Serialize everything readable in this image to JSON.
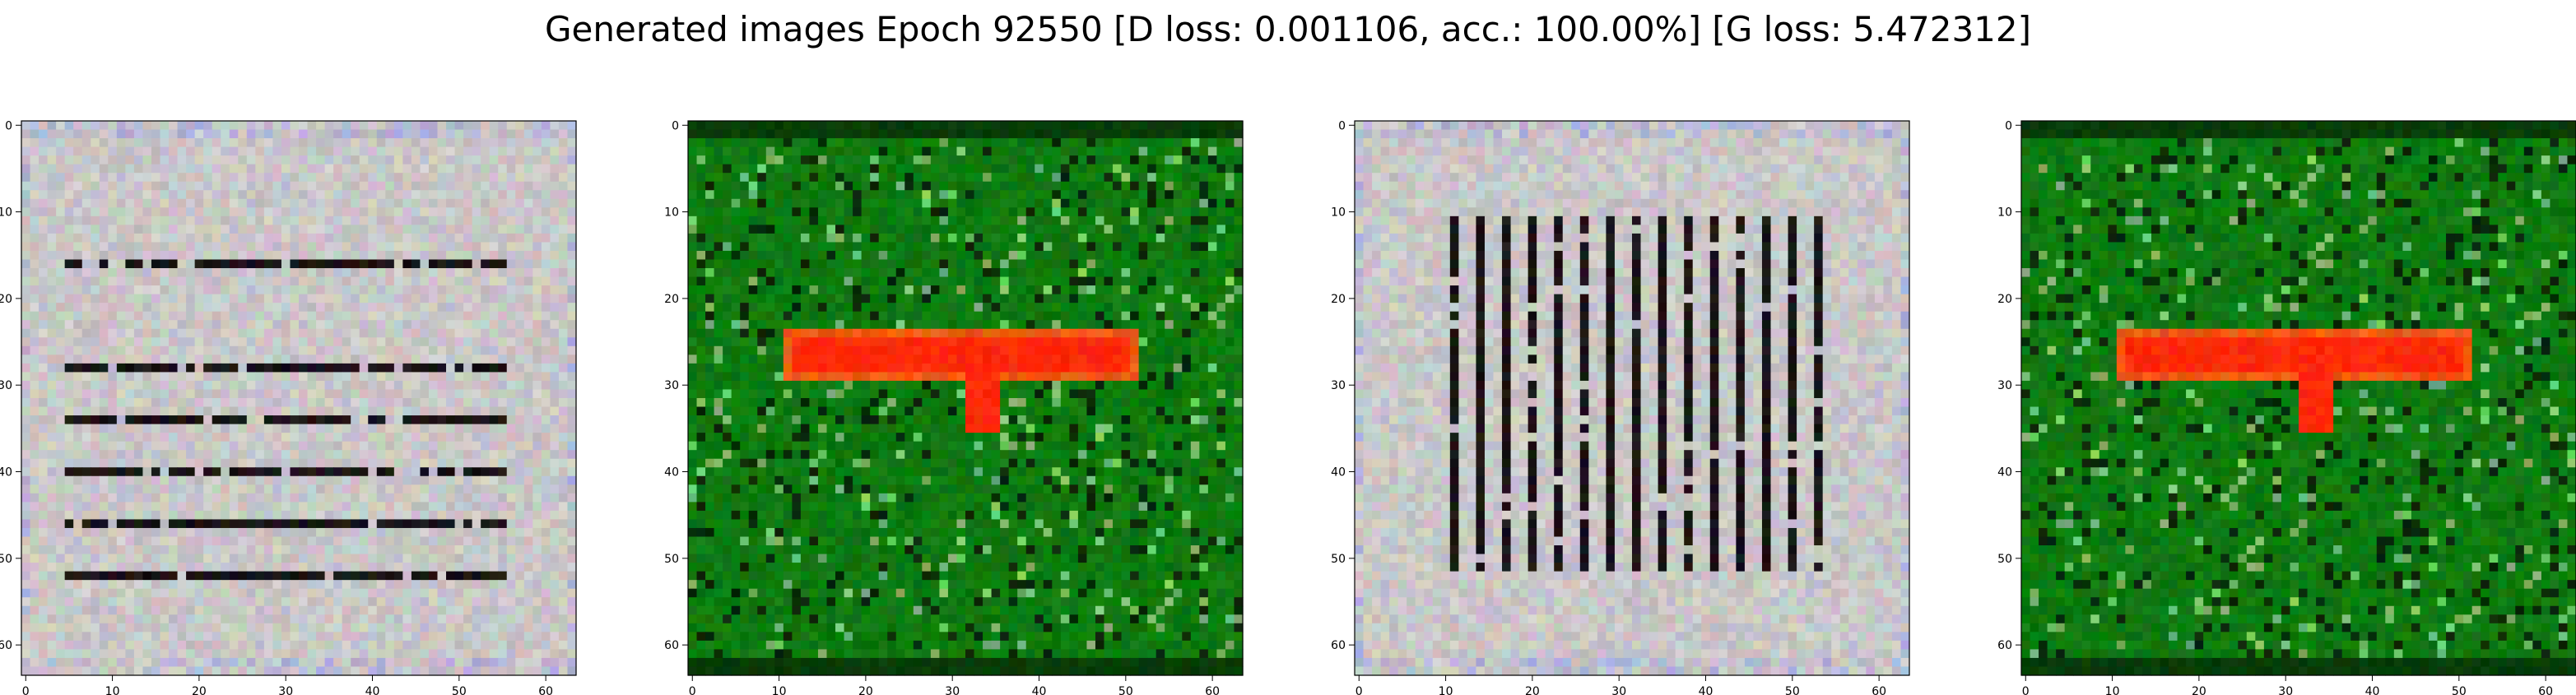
{
  "figure": {
    "title": "Generated images Epoch 92550 [D loss: 0.001106, acc.: 100.00%] [G loss: 5.472312]"
  },
  "chart_data": [
    {
      "type": "heatmap",
      "xticks": [
        "0",
        "10",
        "20",
        "30",
        "40",
        "50",
        "60"
      ],
      "yticks": [
        "0",
        "10",
        "20",
        "30",
        "40",
        "50",
        "60"
      ],
      "xlim": [
        -0.5,
        63.5
      ],
      "ylim": [
        63.5,
        -0.5
      ],
      "grid": false,
      "background_color": "#c9c7c7",
      "pattern": "horizontal dark stripes",
      "stripe_color": "#1a1416"
    },
    {
      "type": "heatmap",
      "xticks": [
        "0",
        "10",
        "20",
        "30",
        "40",
        "50",
        "60"
      ],
      "yticks": [
        "0",
        "10",
        "20",
        "30",
        "40",
        "50",
        "60"
      ],
      "xlim": [
        -0.5,
        63.5
      ],
      "ylim": [
        63.5,
        -0.5
      ],
      "grid": false,
      "background_color": "#0f7a10",
      "pattern": "red blob on green",
      "blob_color": "#ff2a0a"
    },
    {
      "type": "heatmap",
      "xticks": [
        "0",
        "10",
        "20",
        "30",
        "40",
        "50",
        "60"
      ],
      "yticks": [
        "0",
        "10",
        "20",
        "30",
        "40",
        "50",
        "60"
      ],
      "xlim": [
        -0.5,
        63.5
      ],
      "ylim": [
        63.5,
        -0.5
      ],
      "grid": false,
      "background_color": "#c9c7c7",
      "pattern": "vertical dark stripes",
      "stripe_color": "#1a1416"
    },
    {
      "type": "heatmap",
      "xticks": [
        "0",
        "10",
        "20",
        "30",
        "40",
        "50",
        "60"
      ],
      "yticks": [
        "0",
        "10",
        "20",
        "30",
        "40",
        "50",
        "60"
      ],
      "xlim": [
        -0.5,
        63.5
      ],
      "ylim": [
        63.5,
        -0.5
      ],
      "grid": false,
      "background_color": "#0f7a10",
      "pattern": "red blob on green",
      "blob_color": "#ff2a0a"
    }
  ]
}
